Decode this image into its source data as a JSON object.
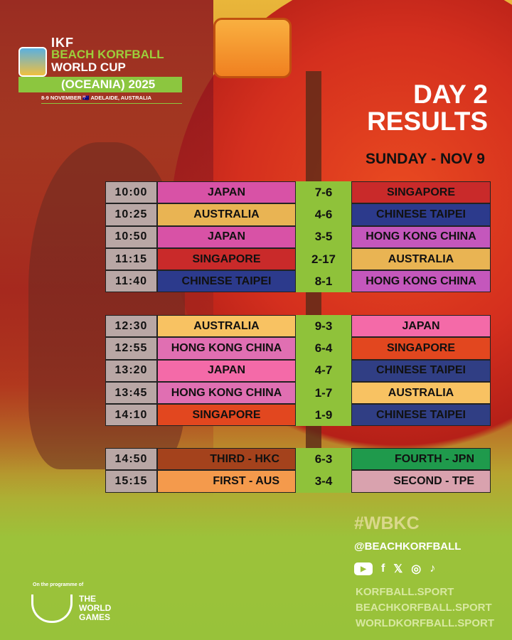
{
  "logo": {
    "ikf": "IKF",
    "line1": "BEACH KORFBALL",
    "line2": "WORLD CUP",
    "band": "(OCEANIA) 2025",
    "dates": "8-9 NOVEMBER 🇦🇺 ADELAIDE, AUSTRALIA"
  },
  "title": {
    "line1": "DAY 2",
    "line2": "RESULTS"
  },
  "day": "SUNDAY - NOV 9",
  "colors": {
    "JAPAN": "#d852a6",
    "AUSTRALIA": "#e9b453",
    "SINGAPORE": "#c92a2a",
    "CHINESE TAIPEI": "#2c3a8c",
    "HONG KONG CHINA": "#c457bc",
    "JAPAN2": "#f46aa8",
    "AUSTRALIA2": "#f8c262",
    "SINGAPORE2": "#e2471f",
    "CHINESE TAIPEI2": "#303e84",
    "HONG KONG CHINA2": "#e06fb2",
    "score_bg": "#8fc23a"
  },
  "groups": [
    [
      {
        "time": "10:00",
        "home": "JAPAN",
        "score": "7-6",
        "away": "SINGAPORE"
      },
      {
        "time": "10:25",
        "home": "AUSTRALIA",
        "score": "4-6",
        "away": "CHINESE TAIPEI"
      },
      {
        "time": "10:50",
        "home": "JAPAN",
        "score": "3-5",
        "away": "HONG KONG CHINA"
      },
      {
        "time": "11:15",
        "home": "SINGAPORE",
        "score": "2-17",
        "away": "AUSTRALIA"
      },
      {
        "time": "11:40",
        "home": "CHINESE TAIPEI",
        "score": "8-1",
        "away": "HONG KONG CHINA"
      }
    ],
    [
      {
        "time": "12:30",
        "home": "AUSTRALIA",
        "score": "9-3",
        "away": "JAPAN"
      },
      {
        "time": "12:55",
        "home": "HONG KONG CHINA",
        "score": "6-4",
        "away": "SINGAPORE"
      },
      {
        "time": "13:20",
        "home": "JAPAN",
        "score": "4-7",
        "away": "CHINESE TAIPEI"
      },
      {
        "time": "13:45",
        "home": "HONG KONG CHINA",
        "score": "1-7",
        "away": "AUSTRALIA"
      },
      {
        "time": "14:10",
        "home": "SINGAPORE",
        "score": "1-9",
        "away": "CHINESE TAIPEI"
      }
    ],
    [
      {
        "time": "14:50",
        "home": "THIRD - HKC",
        "score": "6-3",
        "away": "FOURTH - JPN"
      },
      {
        "time": "15:15",
        "home": "FIRST - AUS",
        "score": "3-4",
        "away": "SECOND - TPE"
      }
    ]
  ],
  "finals_colors": {
    "THIRD - HKC": "#a4421c",
    "FIRST - AUS": "#f49a4c",
    "FOURTH - JPN": "#1f9a4c",
    "SECOND - TPE": "#d9a2ae"
  },
  "hashtag": "#WBKC",
  "handle": "@BEACHKORFBALL",
  "social_icons": [
    "youtube-icon",
    "facebook-icon",
    "x-icon",
    "instagram-icon",
    "tiktok-icon"
  ],
  "urls": [
    "KORFBALL.SPORT",
    "BEACHKORFBALL.SPORT",
    "WORLDKORFBALL.SPORT"
  ],
  "twg": {
    "small": "On the programme of",
    "line1": "THE",
    "line2": "WORLD",
    "line3": "GAMES"
  }
}
